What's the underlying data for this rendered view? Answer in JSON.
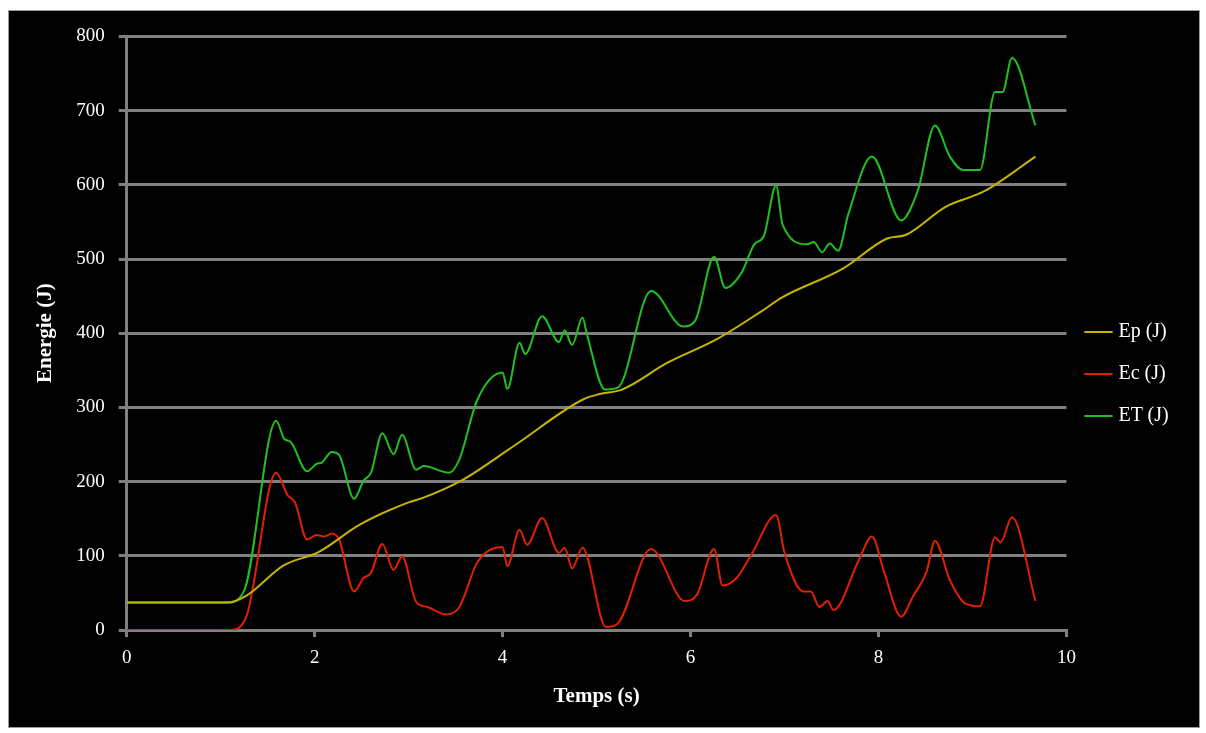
{
  "chart_data": {
    "type": "line",
    "xlabel": "Temps (s)",
    "ylabel": "Energie (J)",
    "xlim": [
      0,
      10
    ],
    "xticks": [
      0,
      2,
      4,
      6,
      8,
      10
    ],
    "ylim": [
      0,
      800
    ],
    "yticks": [
      0,
      100,
      200,
      300,
      400,
      500,
      600,
      700,
      800
    ],
    "grid": "y",
    "legend": "right",
    "marker": "none",
    "line_style": "solid",
    "series": [
      {
        "name": "Ep (J)",
        "color": "#c8b400",
        "x": [
          0,
          1.07,
          1.27,
          1.67,
          2.04,
          2.48,
          3.0,
          3.13,
          3.57,
          4.13,
          4.86,
          5.03,
          5.27,
          5.75,
          6.28,
          6.76,
          6.97,
          7.62,
          8.08,
          8.3,
          8.71,
          9.12,
          9.67
        ],
        "values": [
          37,
          37,
          46,
          87,
          105,
          142,
          172,
          177,
          202,
          249,
          311,
          318,
          324,
          360,
          392,
          430,
          448,
          487,
          527,
          533,
          570,
          591,
          638
        ]
      },
      {
        "name": "Ec (J)",
        "color": "#e02000",
        "x": [
          0,
          1.1,
          1.27,
          1.59,
          1.71,
          1.79,
          1.92,
          2.02,
          2.1,
          2.18,
          2.26,
          2.42,
          2.52,
          2.6,
          2.72,
          2.84,
          2.93,
          3.08,
          3.2,
          3.4,
          3.54,
          3.73,
          4.0,
          4.05,
          4.18,
          4.26,
          4.42,
          4.6,
          4.66,
          4.74,
          4.85,
          5.1,
          5.22,
          5.58,
          5.94,
          6.07,
          6.25,
          6.34,
          6.49,
          6.65,
          6.91,
          7.0,
          7.2,
          7.28,
          7.37,
          7.46,
          7.52,
          7.79,
          7.93,
          8.06,
          8.24,
          8.37,
          8.51,
          8.6,
          8.76,
          8.92,
          9.08,
          9.24,
          9.3,
          9.42,
          9.67
        ],
        "values": [
          0,
          0,
          17,
          212,
          182,
          172,
          122,
          128,
          126,
          130,
          122,
          52,
          70,
          77,
          116,
          81,
          99,
          38,
          31,
          21,
          31,
          91,
          112,
          86,
          135,
          115,
          151,
          104,
          111,
          83,
          111,
          4,
          8,
          109,
          39,
          48,
          109,
          60,
          70,
          102,
          155,
          104,
          52,
          52,
          31,
          39,
          27,
          94,
          126,
          78,
          18,
          46,
          78,
          120,
          67,
          36,
          32,
          125,
          118,
          152,
          39
        ]
      },
      {
        "name": "ET (J)",
        "color": "#20c020",
        "x": [
          0,
          1.07,
          1.25,
          1.59,
          1.68,
          1.74,
          1.92,
          2.02,
          2.08,
          2.18,
          2.26,
          2.42,
          2.52,
          2.6,
          2.72,
          2.84,
          2.93,
          3.08,
          3.16,
          3.43,
          3.54,
          3.73,
          4.0,
          4.05,
          4.18,
          4.24,
          4.42,
          4.6,
          4.66,
          4.74,
          4.85,
          4.9,
          5.09,
          5.23,
          5.58,
          5.92,
          6.05,
          6.25,
          6.37,
          6.54,
          6.68,
          6.78,
          6.91,
          6.98,
          7.24,
          7.31,
          7.4,
          7.48,
          7.57,
          7.68,
          7.93,
          8.24,
          8.42,
          8.6,
          8.76,
          8.9,
          9.08,
          9.24,
          9.32,
          9.42,
          9.67
        ],
        "values": [
          37,
          37,
          53,
          282,
          257,
          254,
          214,
          224,
          226,
          240,
          236,
          177,
          201,
          212,
          265,
          237,
          263,
          216,
          221,
          212,
          230,
          310,
          347,
          325,
          387,
          372,
          423,
          388,
          404,
          384,
          421,
          397,
          324,
          327,
          457,
          409,
          417,
          503,
          461,
          481,
          520,
          531,
          599,
          546,
          520,
          523,
          509,
          521,
          511,
          561,
          638,
          552,
          593,
          680,
          638,
          620,
          620,
          725,
          725,
          771,
          680
        ]
      }
    ]
  }
}
